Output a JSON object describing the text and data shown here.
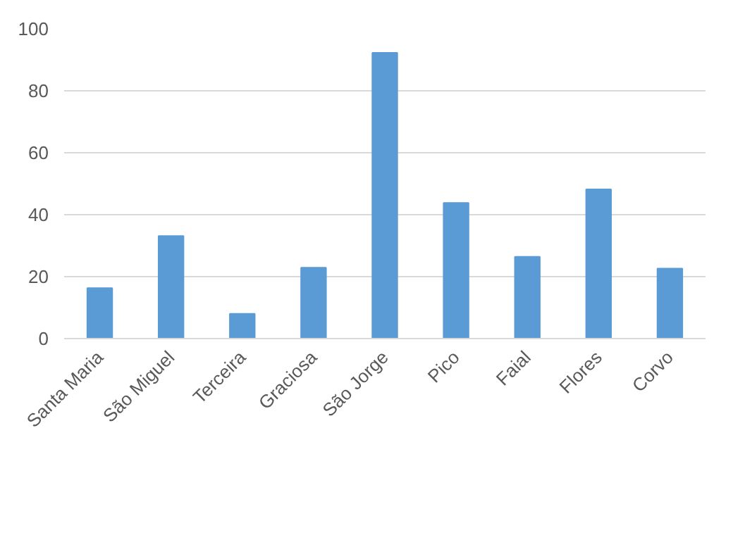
{
  "chart_data": {
    "type": "bar",
    "categories": [
      "Santa Maria",
      "São Miguel",
      "Terceira",
      "Graciosa",
      "São Jorge",
      "Pico",
      "Faial",
      "Flores",
      "Corvo"
    ],
    "values": [
      16.3,
      33.1,
      8.0,
      22.9,
      92.3,
      43.8,
      26.4,
      48.2,
      22.6
    ],
    "color": "#5b9bd5",
    "ylim": [
      0,
      100
    ],
    "yticks": [
      0,
      20,
      40,
      60,
      80,
      100
    ],
    "grid": "y"
  }
}
